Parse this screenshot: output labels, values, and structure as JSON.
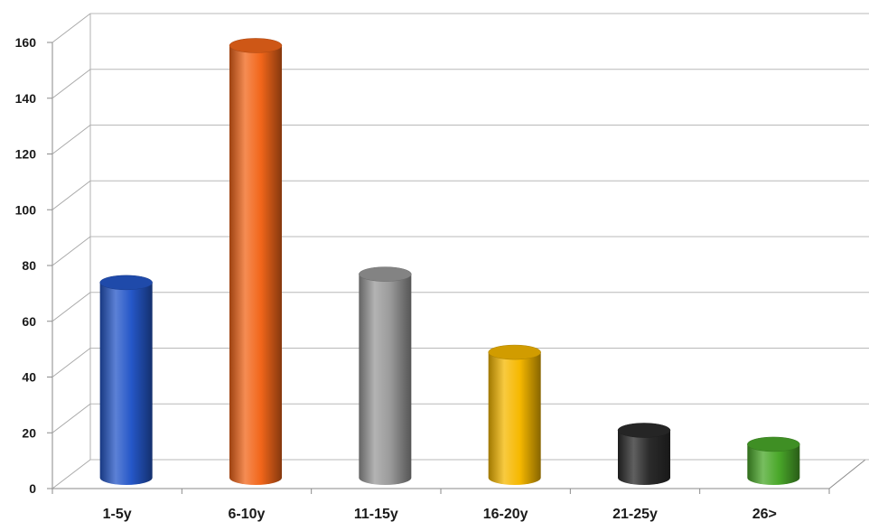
{
  "chart_data": {
    "type": "bar",
    "style": "3d-cylinder",
    "title": "",
    "xlabel": "",
    "ylabel": "",
    "categories": [
      "1-5y",
      "6-10y",
      "11-15y",
      "16-20y",
      "21-25y",
      "26>"
    ],
    "values": [
      70,
      155,
      73,
      45,
      17,
      12
    ],
    "colors": [
      "#2557c8",
      "#f2661a",
      "#9a9a9a",
      "#f6b800",
      "#2b2b2b",
      "#4aa82a"
    ],
    "ylim": [
      0,
      160
    ],
    "yticks": [
      "0",
      "20",
      "40",
      "60",
      "80",
      "100",
      "120",
      "140",
      "160"
    ],
    "grid": true,
    "legend": "none"
  }
}
